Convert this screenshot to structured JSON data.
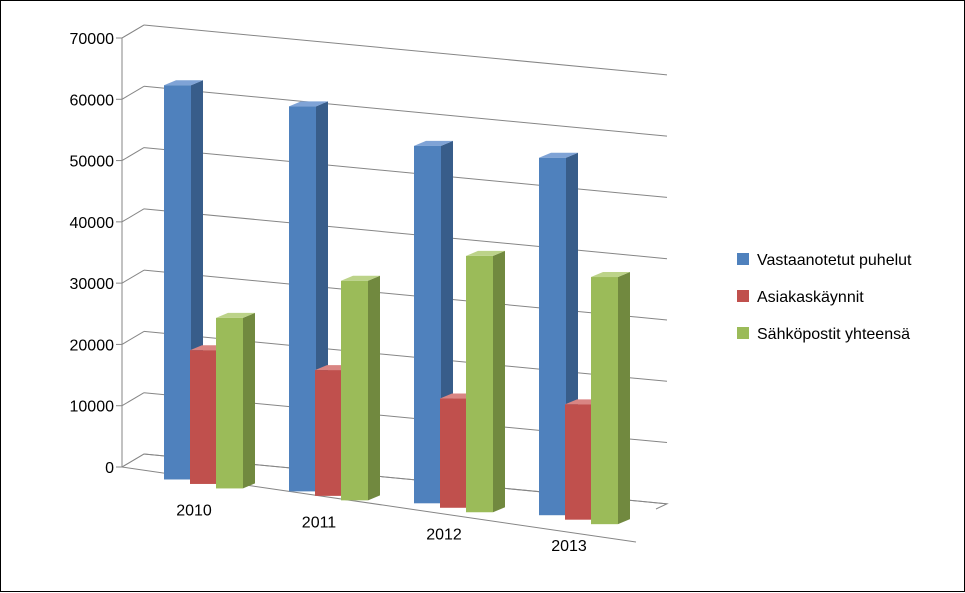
{
  "chart_data": {
    "type": "bar",
    "title": "",
    "xlabel": "",
    "ylabel": "",
    "categories": [
      "2010",
      "2011",
      "2012",
      "2013"
    ],
    "series": [
      {
        "name": "Vastaanotetut puhelut",
        "values": [
          64000,
          62500,
          58000,
          58000
        ],
        "color": "#4F81BD",
        "side": "#385D8A",
        "top": "#7FA3D6"
      },
      {
        "name": "Asiakaskäynnit",
        "values": [
          21500,
          20200,
          17500,
          18500
        ],
        "color": "#C0504D",
        "side": "#8E3A38",
        "top": "#D98583"
      },
      {
        "name": "Sähköpostit yhteensä",
        "values": [
          27500,
          35500,
          41500,
          40000
        ],
        "color": "#9BBB59",
        "side": "#71893F",
        "top": "#BCD389"
      }
    ],
    "ylim": [
      0,
      70000
    ],
    "yticks": [
      0,
      10000,
      20000,
      30000,
      40000,
      50000,
      60000,
      70000
    ],
    "grid": true,
    "legend": "right"
  }
}
